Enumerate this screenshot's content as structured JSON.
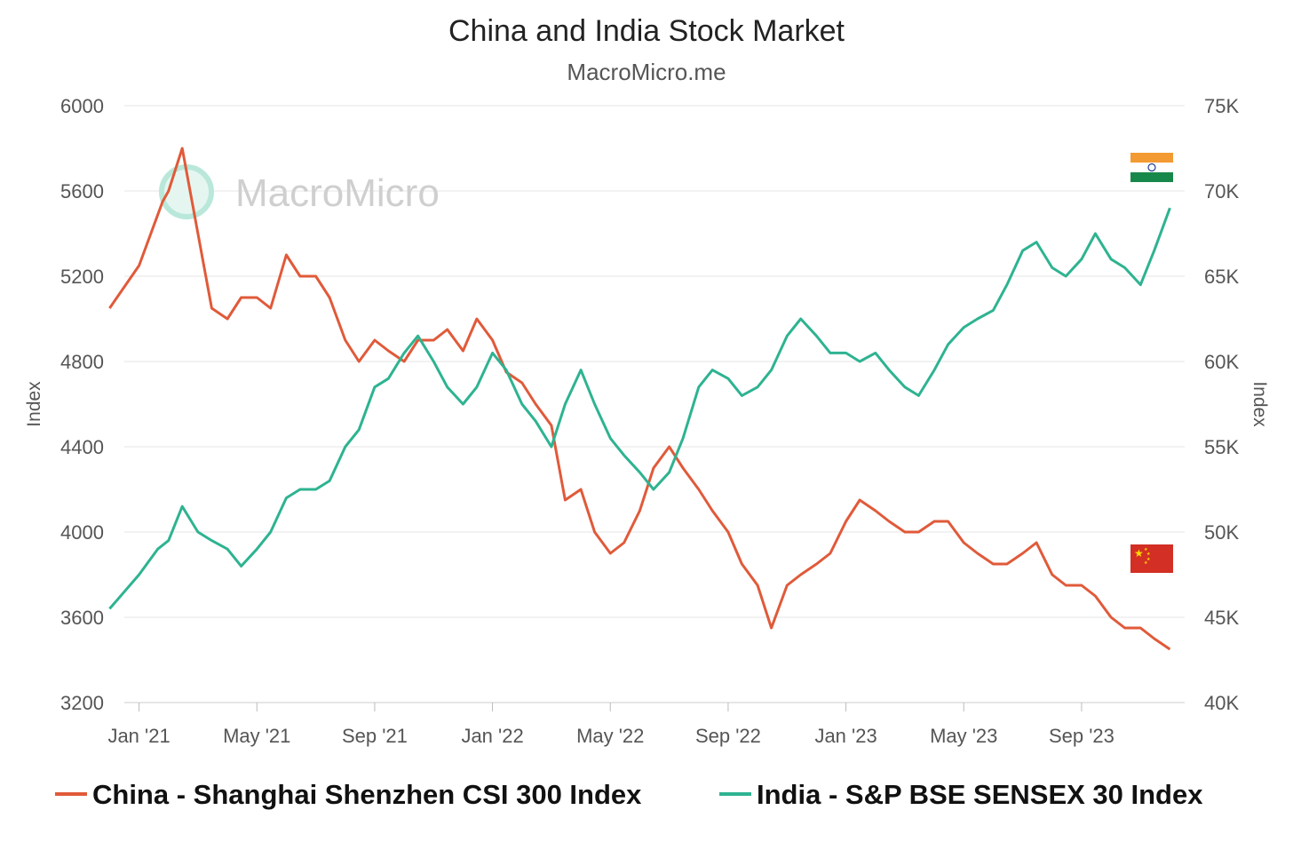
{
  "chart_data": {
    "type": "line",
    "title": "China and India Stock Market",
    "subtitle": "MacroMicro.me",
    "watermark": "MacroMicro",
    "x_ticks": [
      "Jan '21",
      "May '21",
      "Sep '21",
      "Jan '22",
      "May '22",
      "Sep '22",
      "Jan '23",
      "May '23",
      "Sep '23"
    ],
    "x_range": [
      "2020-12",
      "2023-12"
    ],
    "y_left": {
      "label": "Index",
      "range": [
        3200,
        6000
      ],
      "ticks": [
        "3200",
        "3600",
        "4000",
        "4400",
        "4800",
        "5200",
        "5600",
        "6000"
      ]
    },
    "y_right": {
      "label": "Index",
      "range": [
        40000,
        75000
      ],
      "ticks": [
        "40K",
        "45K",
        "50K",
        "55K",
        "60K",
        "65K",
        "70K",
        "75K"
      ]
    },
    "grid": true,
    "legend_position": "bottom",
    "series": [
      {
        "name": "China - Shanghai Shenzhen CSI 300 Index",
        "axis": "left",
        "color": "#e05a3a",
        "flag": "china-flag-icon",
        "points": [
          [
            "2020-12",
            5050
          ],
          [
            "2021-01",
            5250
          ],
          [
            "2021-01-25",
            5550
          ],
          [
            "2021-02",
            5600
          ],
          [
            "2021-02-15",
            5800
          ],
          [
            "2021-03",
            5400
          ],
          [
            "2021-03-15",
            5050
          ],
          [
            "2021-04",
            5000
          ],
          [
            "2021-04-15",
            5100
          ],
          [
            "2021-05",
            5100
          ],
          [
            "2021-05-15",
            5050
          ],
          [
            "2021-06",
            5300
          ],
          [
            "2021-06-15",
            5200
          ],
          [
            "2021-07",
            5200
          ],
          [
            "2021-07-15",
            5100
          ],
          [
            "2021-08",
            4900
          ],
          [
            "2021-08-15",
            4800
          ],
          [
            "2021-09",
            4900
          ],
          [
            "2021-09-15",
            4850
          ],
          [
            "2021-10",
            4800
          ],
          [
            "2021-10-15",
            4900
          ],
          [
            "2021-11",
            4900
          ],
          [
            "2021-11-15",
            4950
          ],
          [
            "2021-12",
            4850
          ],
          [
            "2021-12-15",
            5000
          ],
          [
            "2022-01",
            4900
          ],
          [
            "2022-01-15",
            4750
          ],
          [
            "2022-02",
            4700
          ],
          [
            "2022-02-15",
            4600
          ],
          [
            "2022-03",
            4500
          ],
          [
            "2022-03-15",
            4150
          ],
          [
            "2022-04",
            4200
          ],
          [
            "2022-04-15",
            4000
          ],
          [
            "2022-05",
            3900
          ],
          [
            "2022-05-15",
            3950
          ],
          [
            "2022-06",
            4100
          ],
          [
            "2022-06-15",
            4300
          ],
          [
            "2022-07",
            4400
          ],
          [
            "2022-07-15",
            4300
          ],
          [
            "2022-08",
            4200
          ],
          [
            "2022-08-15",
            4100
          ],
          [
            "2022-09",
            4000
          ],
          [
            "2022-09-15",
            3850
          ],
          [
            "2022-10",
            3750
          ],
          [
            "2022-10-15",
            3550
          ],
          [
            "2022-11",
            3750
          ],
          [
            "2022-11-15",
            3800
          ],
          [
            "2022-12",
            3850
          ],
          [
            "2022-12-15",
            3900
          ],
          [
            "2023-01",
            4050
          ],
          [
            "2023-01-15",
            4150
          ],
          [
            "2023-02",
            4100
          ],
          [
            "2023-02-15",
            4050
          ],
          [
            "2023-03",
            4000
          ],
          [
            "2023-03-15",
            4000
          ],
          [
            "2023-04",
            4050
          ],
          [
            "2023-04-15",
            4050
          ],
          [
            "2023-05",
            3950
          ],
          [
            "2023-05-15",
            3900
          ],
          [
            "2023-06",
            3850
          ],
          [
            "2023-06-15",
            3850
          ],
          [
            "2023-07",
            3900
          ],
          [
            "2023-07-15",
            3950
          ],
          [
            "2023-08",
            3800
          ],
          [
            "2023-08-15",
            3750
          ],
          [
            "2023-09",
            3750
          ],
          [
            "2023-09-15",
            3700
          ],
          [
            "2023-10",
            3600
          ],
          [
            "2023-10-15",
            3550
          ],
          [
            "2023-11",
            3550
          ],
          [
            "2023-11-15",
            3500
          ],
          [
            "2023-12",
            3450
          ]
        ]
      },
      {
        "name": "India - S&P BSE SENSEX 30 Index",
        "axis": "right",
        "color": "#2eb391",
        "flag": "india-flag-icon",
        "points": [
          [
            "2020-12",
            45500
          ],
          [
            "2021-01",
            47500
          ],
          [
            "2021-01-20",
            49000
          ],
          [
            "2021-02",
            49500
          ],
          [
            "2021-02-15",
            51500
          ],
          [
            "2021-03",
            50000
          ],
          [
            "2021-03-15",
            49500
          ],
          [
            "2021-04",
            49000
          ],
          [
            "2021-04-15",
            48000
          ],
          [
            "2021-05",
            49000
          ],
          [
            "2021-05-15",
            50000
          ],
          [
            "2021-06",
            52000
          ],
          [
            "2021-06-15",
            52500
          ],
          [
            "2021-07",
            52500
          ],
          [
            "2021-07-15",
            53000
          ],
          [
            "2021-08",
            55000
          ],
          [
            "2021-08-15",
            56000
          ],
          [
            "2021-09",
            58500
          ],
          [
            "2021-09-15",
            59000
          ],
          [
            "2021-10",
            60500
          ],
          [
            "2021-10-15",
            61500
          ],
          [
            "2021-11",
            60000
          ],
          [
            "2021-11-15",
            58500
          ],
          [
            "2021-12",
            57500
          ],
          [
            "2021-12-15",
            58500
          ],
          [
            "2022-01",
            60500
          ],
          [
            "2022-01-15",
            59500
          ],
          [
            "2022-02",
            57500
          ],
          [
            "2022-02-15",
            56500
          ],
          [
            "2022-03",
            55000
          ],
          [
            "2022-03-15",
            57500
          ],
          [
            "2022-04",
            59500
          ],
          [
            "2022-04-15",
            57500
          ],
          [
            "2022-05",
            55500
          ],
          [
            "2022-05-15",
            54500
          ],
          [
            "2022-06",
            53500
          ],
          [
            "2022-06-15",
            52500
          ],
          [
            "2022-07",
            53500
          ],
          [
            "2022-07-15",
            55500
          ],
          [
            "2022-08",
            58500
          ],
          [
            "2022-08-15",
            59500
          ],
          [
            "2022-09",
            59000
          ],
          [
            "2022-09-15",
            58000
          ],
          [
            "2022-10",
            58500
          ],
          [
            "2022-10-15",
            59500
          ],
          [
            "2022-11",
            61500
          ],
          [
            "2022-11-15",
            62500
          ],
          [
            "2022-12",
            61500
          ],
          [
            "2022-12-15",
            60500
          ],
          [
            "2023-01",
            60500
          ],
          [
            "2023-01-15",
            60000
          ],
          [
            "2023-02",
            60500
          ],
          [
            "2023-02-15",
            59500
          ],
          [
            "2023-03",
            58500
          ],
          [
            "2023-03-15",
            58000
          ],
          [
            "2023-04",
            59500
          ],
          [
            "2023-04-15",
            61000
          ],
          [
            "2023-05",
            62000
          ],
          [
            "2023-05-15",
            62500
          ],
          [
            "2023-06",
            63000
          ],
          [
            "2023-06-15",
            64500
          ],
          [
            "2023-07",
            66500
          ],
          [
            "2023-07-15",
            67000
          ],
          [
            "2023-08",
            65500
          ],
          [
            "2023-08-15",
            65000
          ],
          [
            "2023-09",
            66000
          ],
          [
            "2023-09-15",
            67500
          ],
          [
            "2023-10",
            66000
          ],
          [
            "2023-10-15",
            65500
          ],
          [
            "2023-11",
            64500
          ],
          [
            "2023-11-15",
            66500
          ],
          [
            "2023-12",
            69000
          ]
        ]
      }
    ]
  }
}
